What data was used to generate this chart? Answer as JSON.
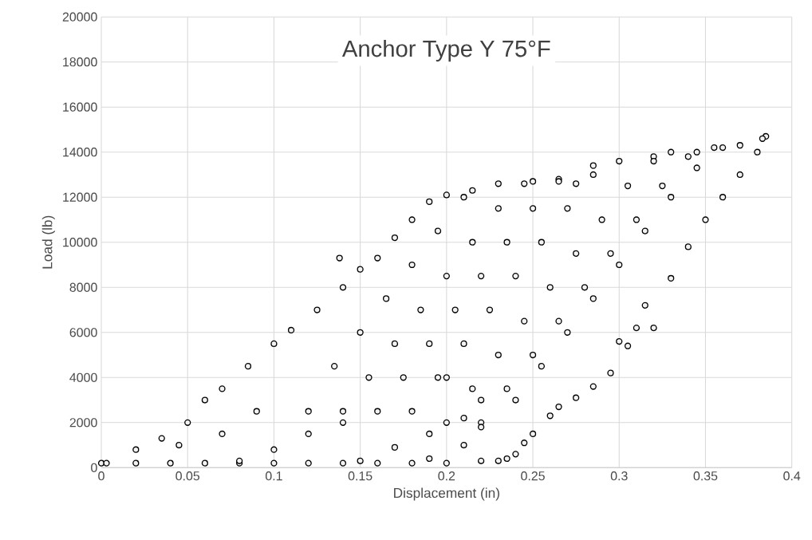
{
  "chart_data": {
    "type": "scatter",
    "title": "Anchor Type Y 75°F",
    "xlabel": "Displacement (in)",
    "ylabel": "Load (lb)",
    "xlim": [
      0,
      0.4
    ],
    "ylim": [
      0,
      20000
    ],
    "xticks": [
      0,
      0.05,
      0.1,
      0.15,
      0.2,
      0.25,
      0.3,
      0.35,
      0.4
    ],
    "yticks": [
      0,
      2000,
      4000,
      6000,
      8000,
      10000,
      12000,
      14000,
      16000,
      18000,
      20000
    ],
    "grid": true,
    "marker": "circle",
    "series": [
      {
        "color": "#000000",
        "x": [
          0,
          0.003,
          0.02,
          0.035,
          0.05,
          0.06,
          0.07,
          0.085,
          0.1,
          0.11,
          0.125,
          0.14,
          0.15,
          0.16,
          0.17,
          0.18,
          0.19,
          0.2,
          0.215,
          0.23,
          0.25,
          0.265,
          0.275,
          0.285,
          0.3,
          0.32,
          0.33,
          0.345,
          0.355,
          0.37,
          0.385,
          0.383,
          0.38,
          0.37,
          0.36,
          0.35,
          0.34,
          0.33,
          0.315,
          0.31,
          0.305,
          0.295,
          0.285,
          0.275,
          0.265,
          0.26,
          0.25,
          0.245,
          0.24,
          0.235,
          0.23,
          0.12,
          0.135,
          0.15,
          0.165,
          0.18,
          0.195,
          0.21,
          0.14,
          0.155,
          0.17,
          0.185,
          0.2,
          0.215,
          0.23,
          0.245,
          0.16,
          0.175,
          0.19,
          0.205,
          0.22,
          0.235,
          0.25,
          0.265,
          0.18,
          0.195,
          0.21,
          0.225,
          0.24,
          0.255,
          0.27,
          0.285,
          0.2,
          0.215,
          0.23,
          0.245,
          0.26,
          0.275,
          0.29,
          0.305,
          0.32,
          0.22,
          0.235,
          0.25,
          0.265,
          0.28,
          0.295,
          0.31,
          0.325,
          0.34,
          0.24,
          0.255,
          0.27,
          0.285,
          0.3,
          0.315,
          0.33,
          0.345,
          0.36,
          0.02,
          0.04,
          0.06,
          0.08,
          0.1,
          0.12,
          0.14,
          0.16,
          0.18,
          0.2,
          0.22,
          0.08,
          0.1,
          0.12,
          0.14,
          0.15,
          0.17,
          0.19,
          0.21,
          0.19,
          0.21,
          0.22,
          0.138,
          0.09,
          0.07,
          0.045,
          0.2,
          0.22,
          0.3,
          0.32
        ],
        "values": [
          200,
          200,
          800,
          1300,
          2000,
          3000,
          3500,
          4500,
          5500,
          6100,
          7000,
          8000,
          8800,
          9300,
          10200,
          11000,
          11800,
          12100,
          12300,
          12600,
          12700,
          12800,
          12600,
          13400,
          13600,
          13800,
          14000,
          14000,
          14200,
          14300,
          14700,
          14600,
          14000,
          13000,
          12000,
          11000,
          9800,
          8400,
          7200,
          6200,
          5400,
          4200,
          3600,
          3100,
          2700,
          2300,
          1500,
          1100,
          600,
          400,
          300,
          2500,
          4500,
          6000,
          7500,
          9000,
          10500,
          12000,
          2500,
          4000,
          5500,
          7000,
          8500,
          10000,
          11500,
          12600,
          2500,
          4000,
          5500,
          7000,
          8500,
          10000,
          11500,
          12700,
          2500,
          4000,
          5500,
          7000,
          8500,
          10000,
          11500,
          13000,
          2000,
          3500,
          5000,
          6500,
          8000,
          9500,
          11000,
          12500,
          13600,
          2000,
          3500,
          5000,
          6500,
          8000,
          9500,
          11000,
          12500,
          13800,
          3000,
          4500,
          6000,
          7500,
          9000,
          10500,
          12000,
          13300,
          14200,
          200,
          200,
          200,
          200,
          200,
          200,
          200,
          200,
          200,
          200,
          300,
          300,
          800,
          1500,
          2000,
          300,
          900,
          1500,
          2200,
          400,
          1000,
          1800,
          9300,
          2500,
          1500,
          1000,
          4000,
          3000,
          5600,
          6200
        ]
      }
    ]
  }
}
